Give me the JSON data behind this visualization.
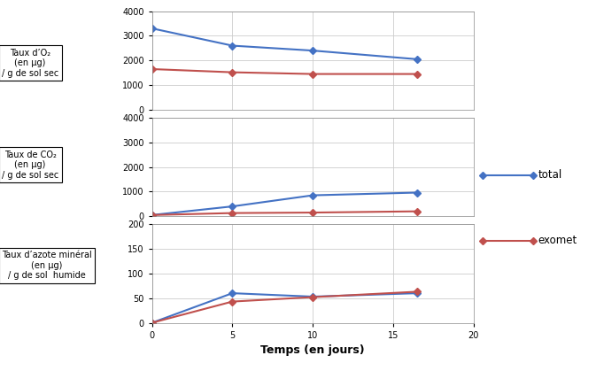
{
  "x": [
    0,
    5,
    10,
    16.5
  ],
  "o2_blue": [
    3300,
    2600,
    2400,
    2050
  ],
  "o2_red": [
    1650,
    1520,
    1450,
    1450
  ],
  "co2_blue": [
    50,
    400,
    850,
    960
  ],
  "co2_red": [
    50,
    130,
    150,
    200
  ],
  "n_blue": [
    0,
    60,
    53,
    60
  ],
  "n_red": [
    0,
    43,
    52,
    63
  ],
  "blue_color": "#4472C4",
  "red_color": "#C0504D",
  "xlabel": "Temps (en jours)",
  "label1": "Taux d’O₂\n(en μg)\n/ g de sol sec",
  "label2": "Taux de CO₂\n(en μg)\n/ g de sol sec",
  "label3": "Taux d’azote minéral\n(en μg)\n/ g de sol  humide",
  "legend_total": "total",
  "legend_exomet": "exomet",
  "xlim": [
    0,
    20
  ],
  "o2_ylim": [
    0,
    4000
  ],
  "co2_ylim": [
    0,
    4000
  ],
  "n_ylim": [
    0,
    200
  ],
  "o2_yticks": [
    0,
    1000,
    2000,
    3000,
    4000
  ],
  "co2_yticks": [
    0,
    1000,
    2000,
    3000,
    4000
  ],
  "n_yticks": [
    0,
    50,
    100,
    150,
    200
  ],
  "xticks": [
    0,
    5,
    10,
    15,
    20
  ],
  "bg_color": "#FFFFFF",
  "marker": "D",
  "markersize": 4,
  "linewidth": 1.5,
  "label_fontsize": 7,
  "tick_fontsize": 7,
  "xlabel_fontsize": 9
}
